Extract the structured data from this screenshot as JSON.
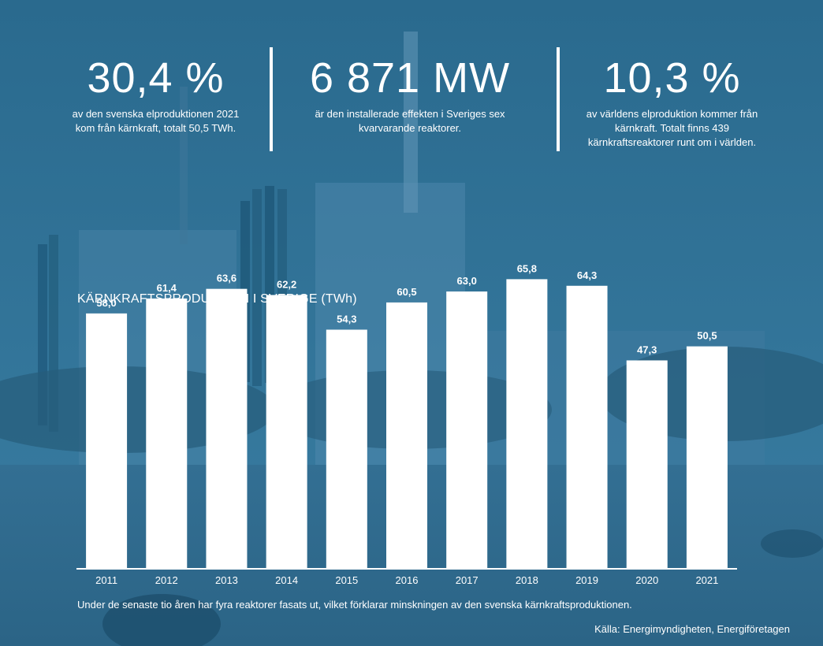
{
  "stats": [
    {
      "value": "30,4 %",
      "text": "av den svenska elproduktionen 2021 kom från kärnkraft, totalt 50,5 TWh."
    },
    {
      "value": "6 871 MW",
      "text": "är den installerade effekten i Sveriges sex kvarvarande reaktorer."
    },
    {
      "value": "10,3 %",
      "text": "av världens elproduktion kommer från kärnkraft. Totalt finns 439 kärnkraftsreaktorer runt om i världen."
    }
  ],
  "chart_data": {
    "type": "bar",
    "title": "KÄRNKRAFTSPRODUKTION I SVERIGE (TWh)",
    "categories": [
      "2011",
      "2012",
      "2013",
      "2014",
      "2015",
      "2016",
      "2017",
      "2018",
      "2019",
      "2020",
      "2021"
    ],
    "values": [
      58.0,
      61.4,
      63.6,
      62.2,
      54.3,
      60.5,
      63.0,
      65.8,
      64.3,
      47.3,
      50.5
    ],
    "value_labels": [
      "58,0",
      "61,4",
      "63,6",
      "62,2",
      "54,3",
      "60,5",
      "63,0",
      "65,8",
      "64,3",
      "47,3",
      "50,5"
    ],
    "ylim": [
      0,
      70
    ],
    "grid": false,
    "bar_color": "#ffffff",
    "xlabel": "",
    "ylabel": ""
  },
  "footnote": "Under de senaste tio åren har fyra reaktorer fasats ut, vilket förklarar minskningen av den svenska kärnkraftsproduktionen.",
  "source": "Källa: Energimyndigheten, Energiföretagen"
}
